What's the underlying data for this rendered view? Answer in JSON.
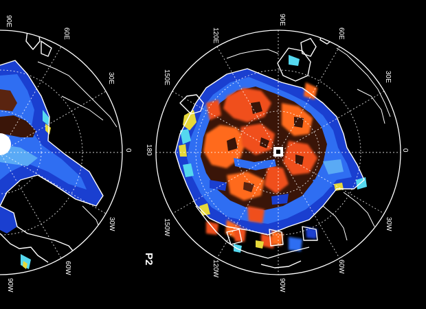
{
  "panel_label": "P2",
  "longitude_labels": {
    "lon_0": "0",
    "lon_30e": "30E",
    "lon_60e": "60E",
    "lon_90e": "90E",
    "lon_120e": "120E",
    "lon_150e": "150E",
    "lon_180": "180",
    "lon_150w": "150W",
    "lon_120w": "120W",
    "lon_90w": "90W",
    "lon_60w": "60W",
    "lon_30w": "30W"
  },
  "left_panel_labels": {
    "lon_90e": "90E",
    "lon_60e": "60E",
    "lon_30e": "30E",
    "lon_0": "0",
    "lon_30w": "30W",
    "lon_60w": "60W",
    "lon_90w": "90W"
  },
  "colors": {
    "background": "#000000",
    "deep_blue": "#1a3fd0",
    "blue": "#2f6ef2",
    "light_blue": "#5aaaf5",
    "cyan": "#55d8ef",
    "dark_brown": "#3a1508",
    "brown": "#5a2410",
    "orange": "#f0501a",
    "bright_orange": "#ff6a1e",
    "yellow": "#e6d83a",
    "coast": "#ffffff"
  }
}
